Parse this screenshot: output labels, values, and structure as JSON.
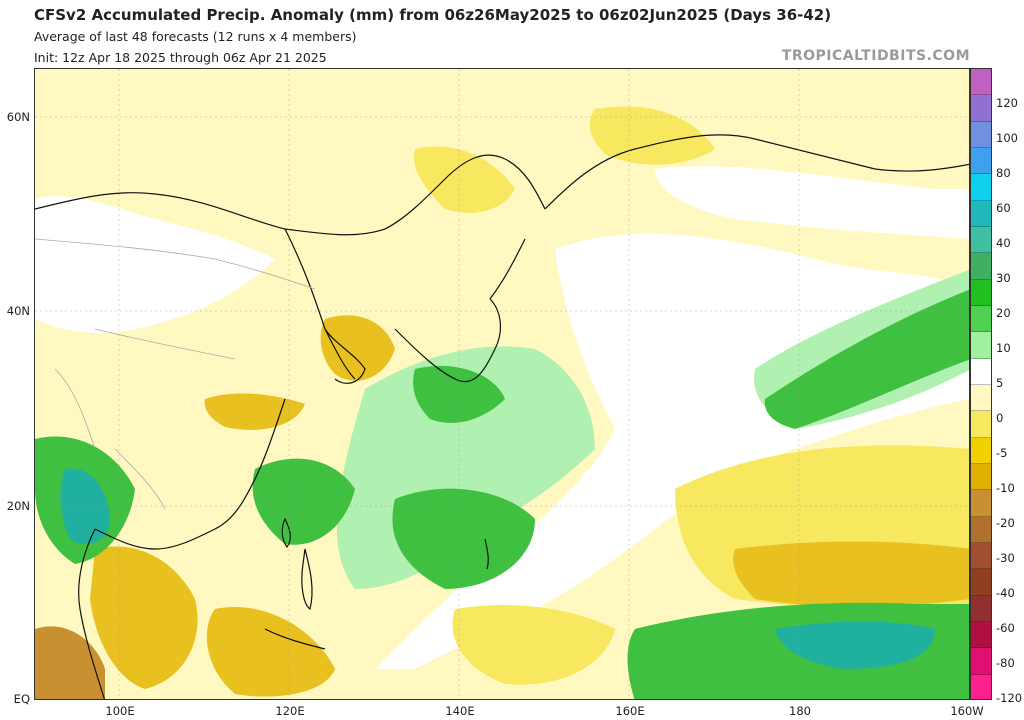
{
  "header": {
    "title": "CFSv2 Accumulated Precip. Anomaly (mm) from 06z26May2025 to 06z02Jun2025 (Days 36-42)",
    "subtitle": "Average of last 48 forecasts (12 runs x 4 members)",
    "init": "Init: 12z Apr 18 2025 through 06z Apr 21 2025",
    "brand": "TROPICALTIDBITS.COM"
  },
  "axes": {
    "lat_labels": [
      "60N",
      "40N",
      "20N",
      "EQ"
    ],
    "lon_labels": [
      "100E",
      "120E",
      "140E",
      "160E",
      "180",
      "160W"
    ]
  },
  "colorbar": {
    "labels": [
      "120",
      "100",
      "80",
      "60",
      "40",
      "30",
      "20",
      "10",
      "5",
      "0",
      "-5",
      "-10",
      "-20",
      "-30",
      "-40",
      "-60",
      "-80",
      "-120"
    ],
    "colors": [
      "#c060c0",
      "#9070d0",
      "#7090e0",
      "#40a0f0",
      "#10d0f0",
      "#20b8b8",
      "#40c0a0",
      "#40b060",
      "#20c020",
      "#50d050",
      "#a0f0a0",
      "#ffffff",
      "#fff8c0",
      "#f8e860",
      "#f0d000",
      "#e0b000",
      "#c89030",
      "#b07030",
      "#a05030",
      "#904020",
      "#903030",
      "#b01040",
      "#e01070",
      "#ff2090"
    ]
  },
  "map": {
    "colors": {
      "ocean_neutral": "#ffffff",
      "light_dry": "#fff8c0",
      "dry": "#f8e860",
      "very_dry": "#e8c020",
      "brown_dry": "#c89030",
      "light_wet": "#b0f0b0",
      "wet": "#40c040",
      "very_wet": "#20a040",
      "teal_wet": "#20b0a0"
    }
  }
}
